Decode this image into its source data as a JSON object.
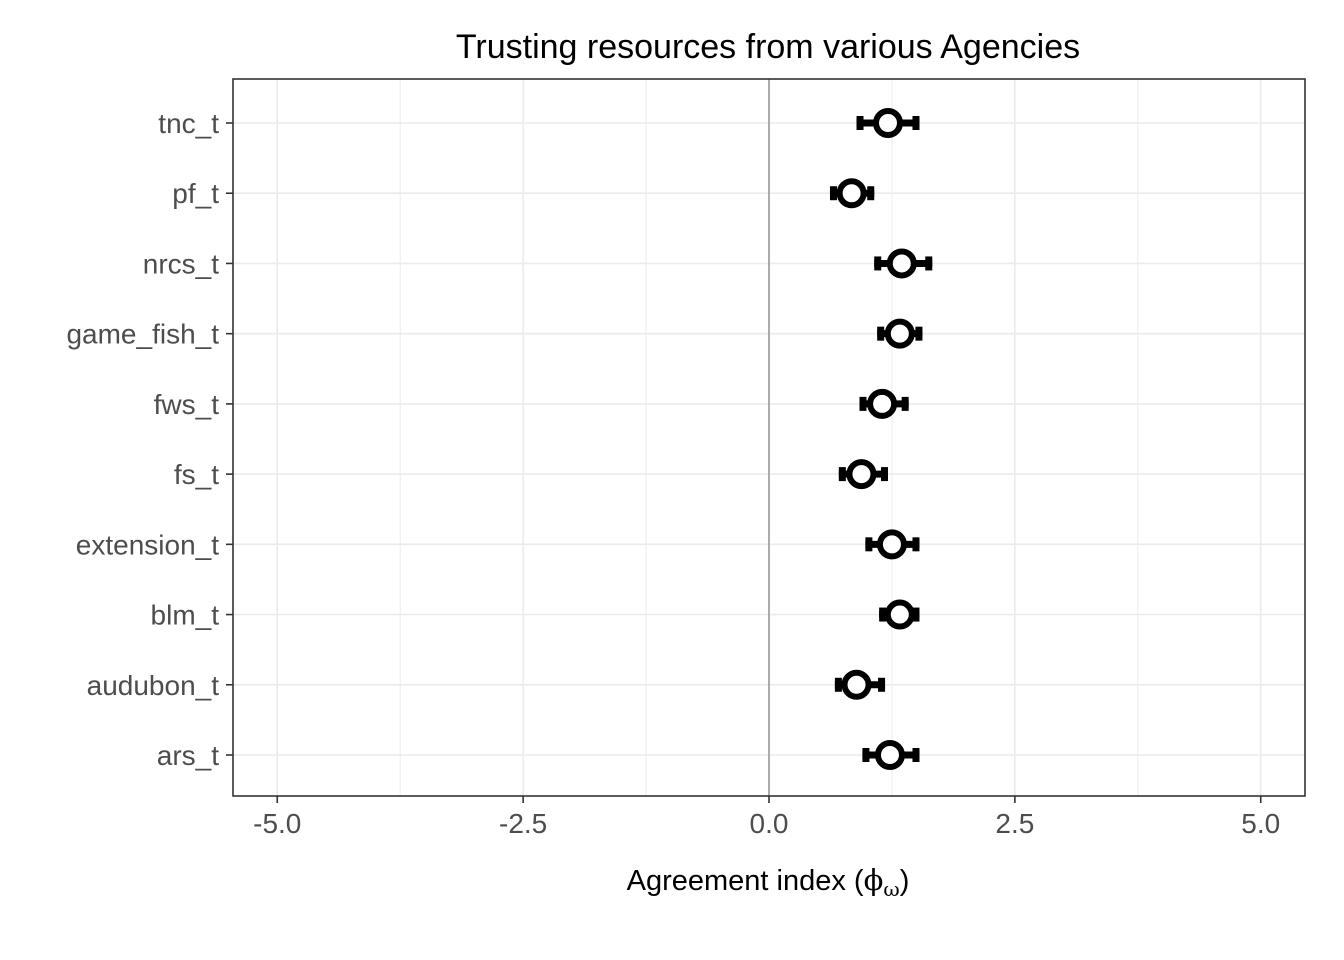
{
  "chart_data": {
    "type": "scatter",
    "title": "Trusting resources from various Agencies",
    "xlabel": "Agreement index (ϕω)",
    "xlabel_parts": {
      "main": "Agreement index (",
      "symbol": "ϕ",
      "subscript": "ω",
      "close": ")"
    },
    "ylabel": "",
    "xlim": [
      -5.45,
      5.45
    ],
    "x_ticks": [
      -5.0,
      -2.5,
      0.0,
      2.5,
      5.0
    ],
    "x_tick_labels": [
      "-5.0",
      "-2.5",
      "0.0",
      "2.5",
      "5.0"
    ],
    "x_minor_ticks": [
      -3.75,
      -1.25,
      1.25,
      3.75
    ],
    "reference_line_x": 0,
    "grid": true,
    "categories": [
      "tnc_t",
      "pf_t",
      "nrcs_t",
      "game_fish_t",
      "fws_t",
      "fs_t",
      "extension_t",
      "blm_t",
      "audubon_t",
      "ars_t"
    ],
    "points": [
      {
        "label": "tnc_t",
        "x": 1.21,
        "low": 0.89,
        "high": 1.53
      },
      {
        "label": "pf_t",
        "x": 0.84,
        "low": 0.62,
        "high": 1.07
      },
      {
        "label": "nrcs_t",
        "x": 1.35,
        "low": 1.07,
        "high": 1.66
      },
      {
        "label": "game_fish_t",
        "x": 1.33,
        "low": 1.1,
        "high": 1.56
      },
      {
        "label": "fws_t",
        "x": 1.15,
        "low": 0.92,
        "high": 1.42
      },
      {
        "label": "fs_t",
        "x": 0.94,
        "low": 0.71,
        "high": 1.21
      },
      {
        "label": "extension_t",
        "x": 1.25,
        "low": 0.98,
        "high": 1.53
      },
      {
        "label": "blm_t",
        "x": 1.33,
        "low": 1.12,
        "high": 1.53
      },
      {
        "label": "audubon_t",
        "x": 0.89,
        "low": 0.67,
        "high": 1.18
      },
      {
        "label": "ars_t",
        "x": 1.23,
        "low": 0.95,
        "high": 1.53
      }
    ],
    "colors": {
      "marker_stroke": "#000000",
      "marker_fill": "#ffffff",
      "errorbar": "#000000",
      "grid": "#ebebeb",
      "reference_line": "#999999",
      "panel_border": "#333333",
      "tick_label": "#4d4d4d"
    }
  }
}
